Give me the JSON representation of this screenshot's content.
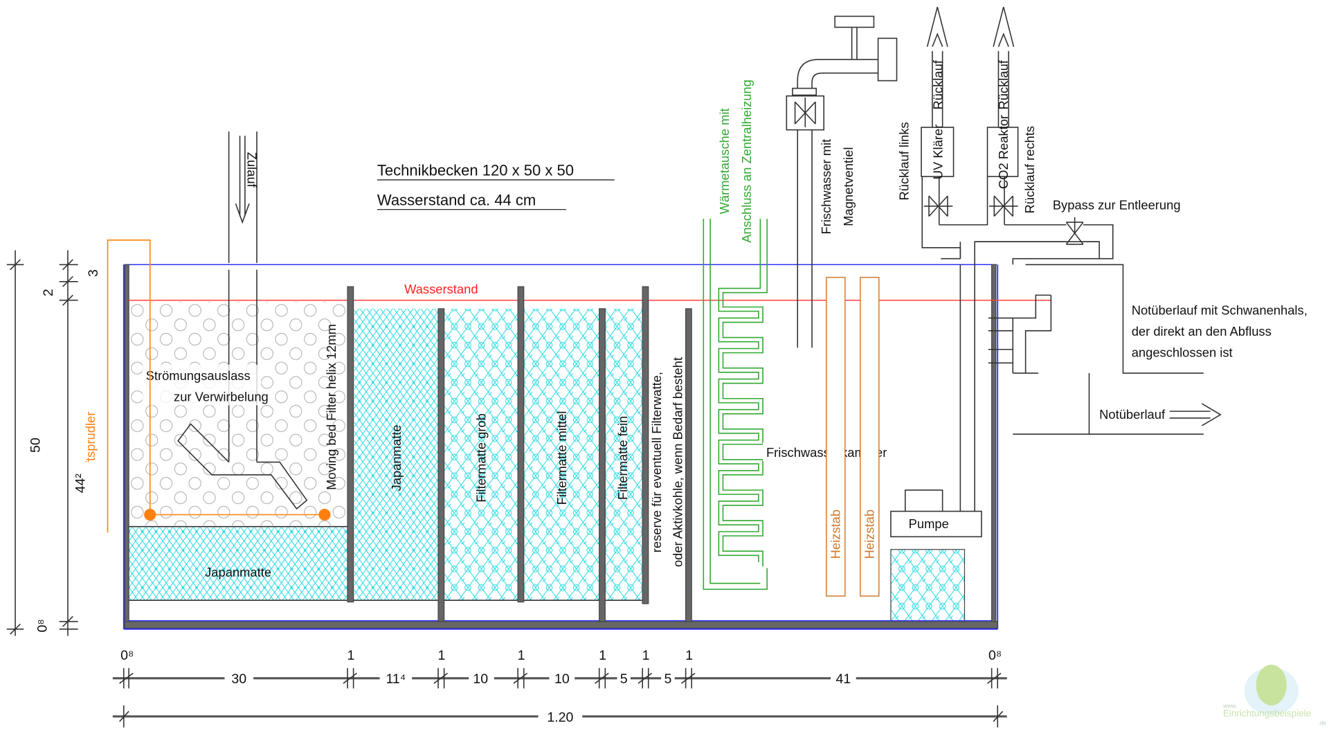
{
  "title": {
    "line1": "Technikbecken 120 x 50 x 50",
    "line2": "Wasserstand ca. 44 cm"
  },
  "labels": {
    "wasserstand": "Wasserstand",
    "zulauf": "Zulauf",
    "stroemung1": "Strömungsauslass",
    "stroemung2": "zur Verwirbelung",
    "luftsprudler": "Luftsprudler",
    "moving_bed": "Moving bed Filter helix 12mm",
    "japanmatte_bottom": "Japanmatte",
    "japanmatte": "Japanmatte",
    "grob": "Filtermatte grob",
    "mittel": "Filtermatte mittel",
    "fein": "Filtermatte fein",
    "reserve1": "reserve für eventuell Filterwatte,",
    "reserve2": "oder Aktivkohle, wenn Bedarf besteht",
    "waerme1": "Wärmetausche mit",
    "waerme2": "Anschluss an Zentralheizung",
    "frisch1": "Frischwasser mit",
    "frisch2": "Magnetventiel",
    "frischkammer": "Frischwasserkammer",
    "heizstab1": "Heizstab",
    "heizstab2": "Heizstab",
    "pumpe": "Pumpe",
    "ruecklauf_links": "Rücklauf links",
    "uv": "UV Klärer",
    "ruecklauf1": "Rücklauf",
    "co2": "CO2 Reaktor",
    "ruecklauf2": "Rücklauf",
    "ruecklauf_rechts": "Rücklauf rechts",
    "bypass": "Bypass zur Entleerung",
    "not1": "Notüberlauf mit Schwanenhals,",
    "not2": "der direkt an den Abfluss",
    "not3": "angeschlossen ist",
    "notueberlauf": "Notüberlauf"
  },
  "dimensions": {
    "left": {
      "total": "50",
      "water": "44²",
      "top_gap": "2",
      "rim": "3",
      "bottom": "0⁸"
    },
    "bottom_walls": [
      "0⁸",
      "1",
      "1",
      "1",
      "1",
      "1",
      "1",
      "0⁸"
    ],
    "bottom_segments": [
      "30",
      "11⁴",
      "10",
      "10",
      "5",
      "5",
      "41"
    ],
    "total": "1.20"
  },
  "watermark": {
    "text": "Einrichtungsbeispiele",
    "prefix": "www.",
    "suffix": ".de"
  },
  "colors": {
    "water_line": "#ff4040",
    "tank_outline": "#3030ff",
    "filter_hatch": "#20d8e0",
    "heat_exchanger": "#30a830",
    "heater": "#d07828",
    "air": "#ff9020"
  }
}
